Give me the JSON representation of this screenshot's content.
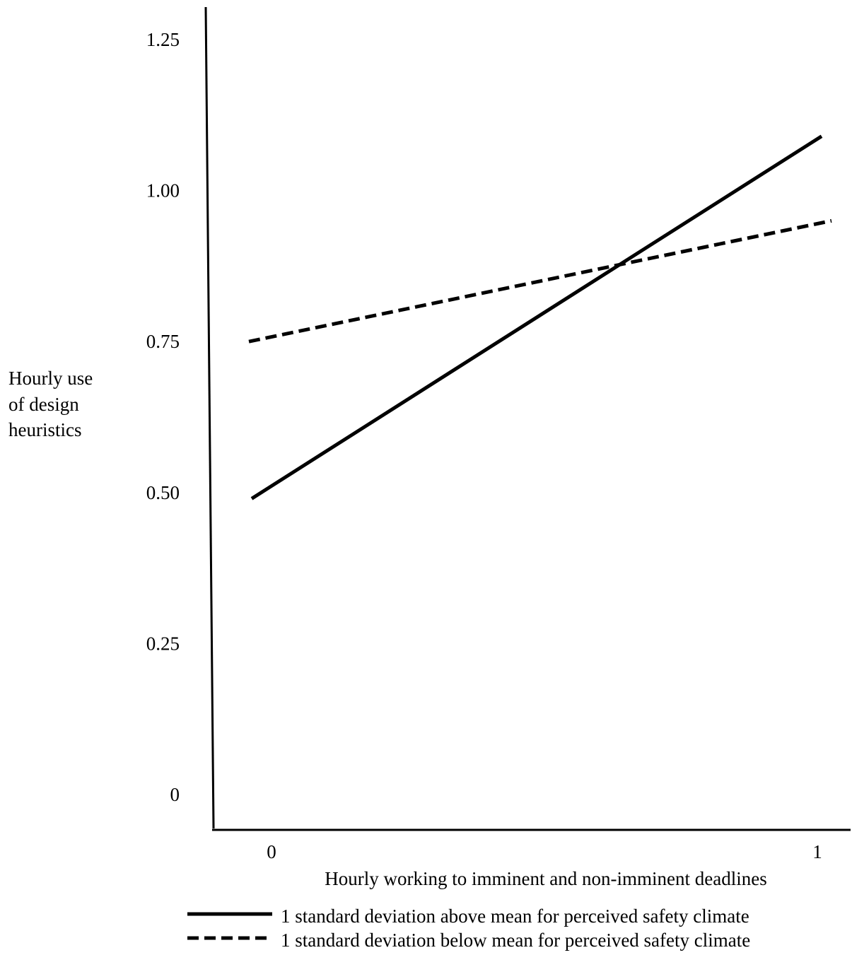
{
  "chart_data": {
    "type": "line",
    "title": "",
    "xlabel": "Hourly working to imminent and non-imminent deadlines",
    "ylabel": [
      "Hourly use",
      "of design",
      "heuristics"
    ],
    "x": [
      0,
      1
    ],
    "x_ticks": [
      "0",
      "1"
    ],
    "y_ticks": [
      "0",
      "0.25",
      "0.50",
      "0.75",
      "1.00",
      "1.25"
    ],
    "ylim": [
      0,
      1.25
    ],
    "grid": false,
    "legend_position": "bottom",
    "series": [
      {
        "name": "1 standard deviation above mean for perceived safety climate",
        "style": "solid",
        "color": "#000000",
        "values": [
          0.49,
          1.09
        ]
      },
      {
        "name": "1 standard deviation below mean for perceived safety climate",
        "style": "dashed",
        "color": "#000000",
        "values": [
          0.75,
          0.95
        ]
      }
    ]
  }
}
